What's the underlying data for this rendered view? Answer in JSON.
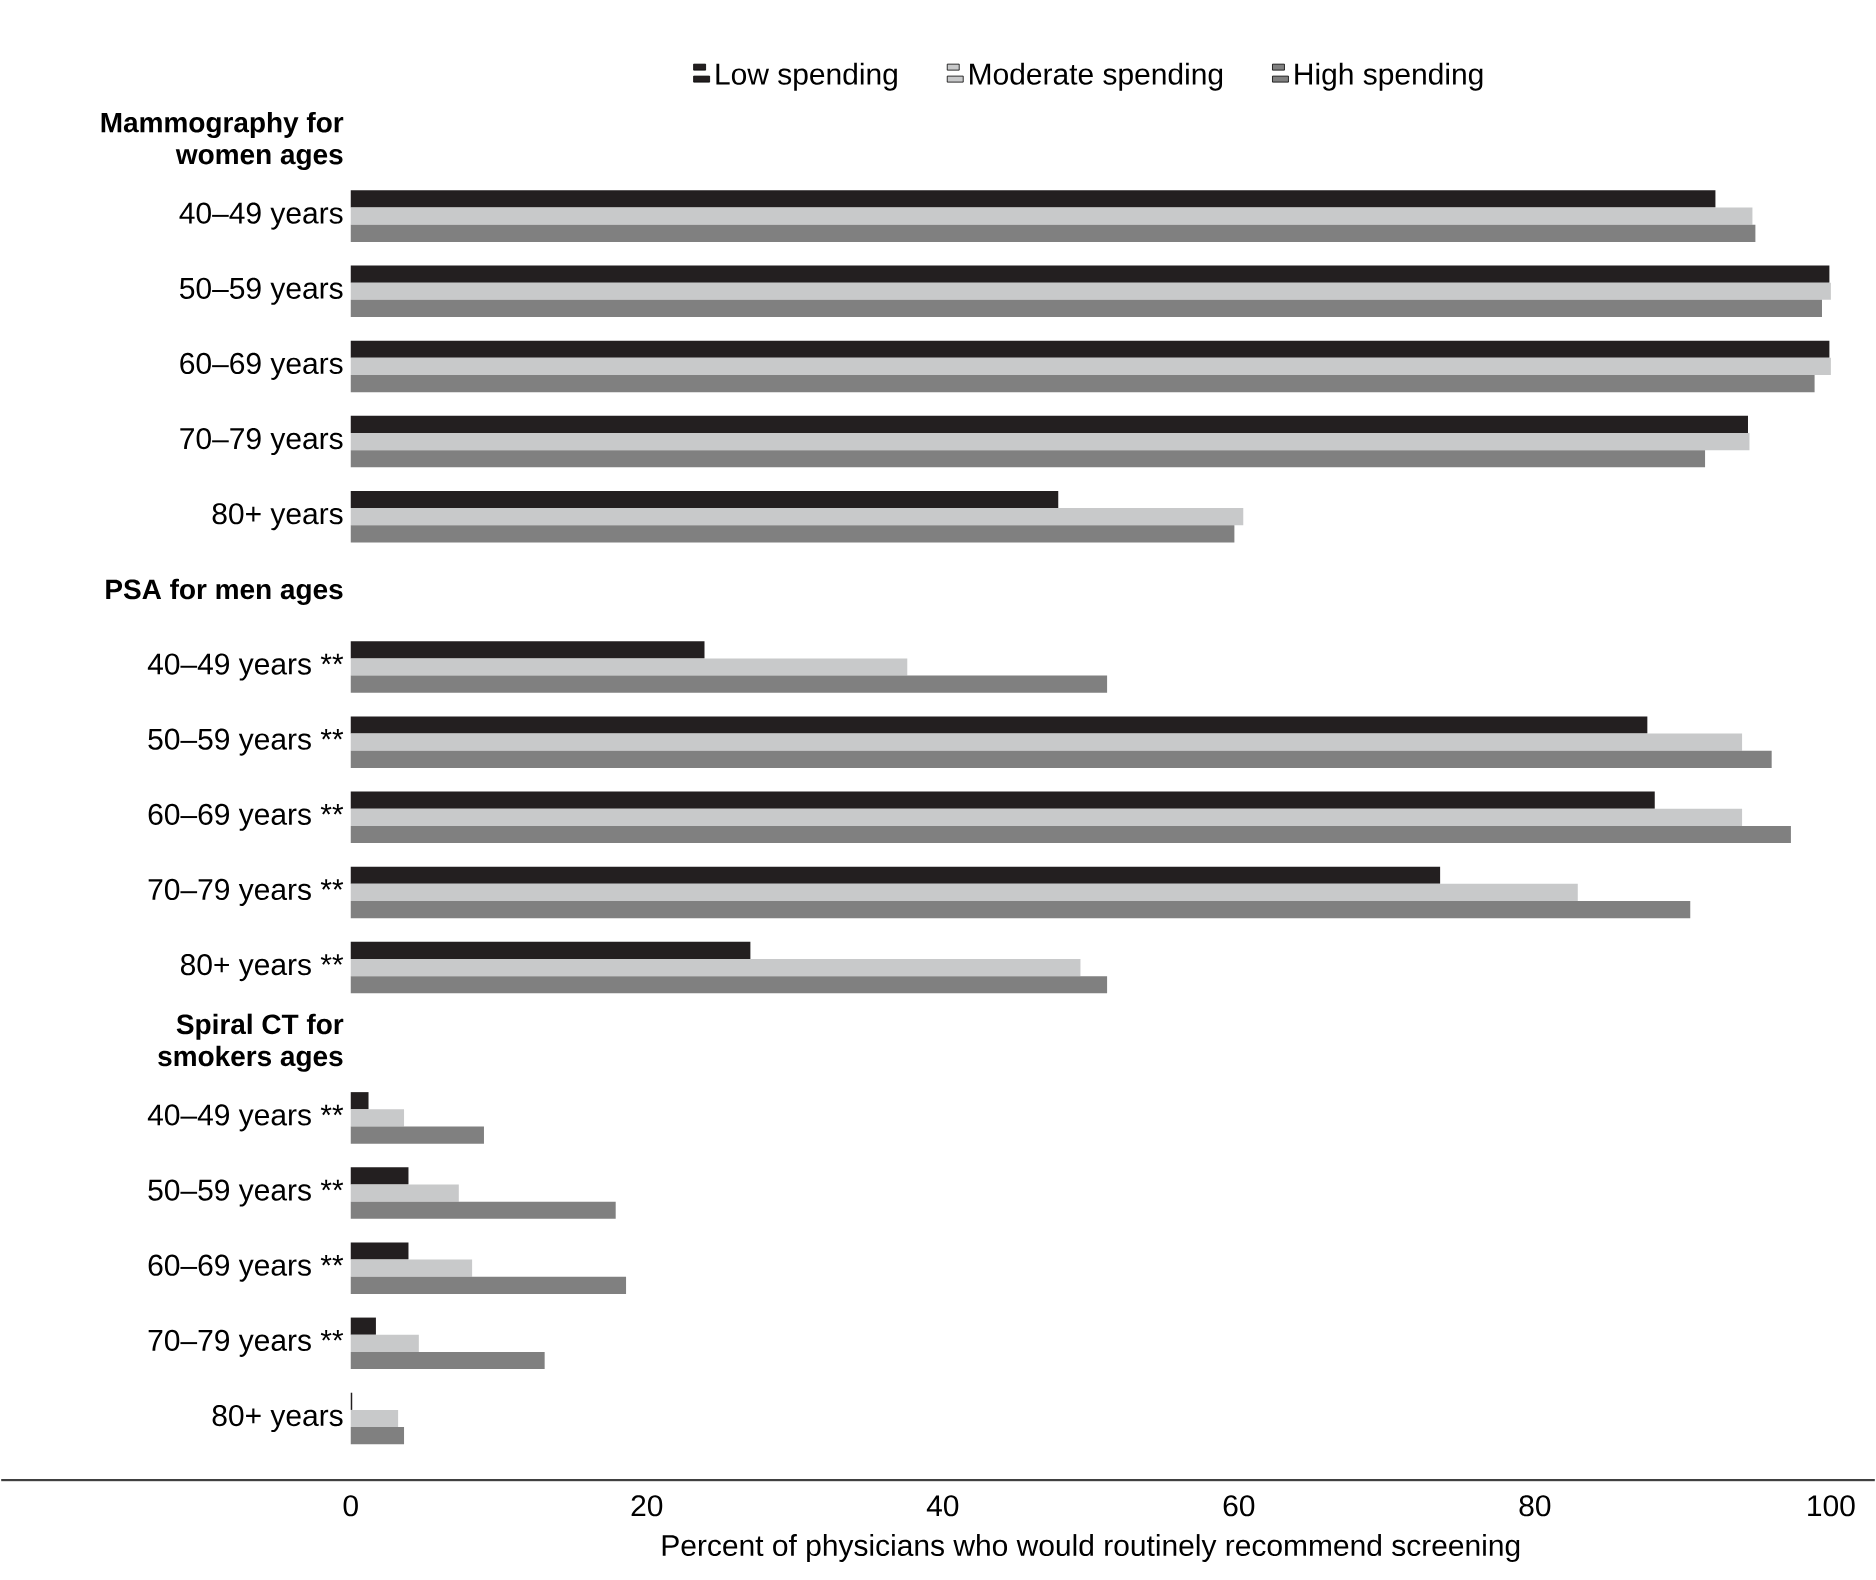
{
  "chart_data": {
    "type": "bar",
    "orientation": "horizontal",
    "xlabel": "Percent of physicians who would routinely recommend screening",
    "categories": [
      "Mammography for women ages",
      "40–49 years",
      "50–59 years",
      "60–69 years",
      "70–79 years",
      "80+ years",
      "PSA for men ages",
      "40–49 years **",
      "50–59 years **",
      "60–69 years **",
      "70–79 years **",
      "80+ years **",
      "Spiral CT for smokers ages",
      "40–49 years **",
      "50–59 years **",
      "60–69 years **",
      "70–79 years **",
      "80+ years"
    ],
    "series": [
      {
        "name": "Low spending",
        "color": "#231f20",
        "values": [
          null,
          92.2,
          99.9,
          99.9,
          94.4,
          47.8,
          null,
          23.9,
          87.6,
          88.1,
          73.6,
          27.0,
          null,
          1.2,
          3.9,
          3.9,
          1.7,
          0.1
        ]
      },
      {
        "name": "Moderate spending",
        "color": "#c8c9ca",
        "values": [
          null,
          94.7,
          100,
          100,
          94.5,
          60.3,
          null,
          37.6,
          94.0,
          94.0,
          82.9,
          49.3,
          null,
          3.6,
          7.3,
          8.2,
          4.6,
          3.2
        ]
      },
      {
        "name": "High spending",
        "color": "#808080",
        "values": [
          null,
          94.9,
          99.4,
          98.9,
          91.5,
          59.7,
          null,
          51.1,
          96.0,
          97.3,
          90.5,
          51.1,
          null,
          9.0,
          17.9,
          18.6,
          13.1,
          3.6
        ]
      }
    ],
    "xlim": [
      0,
      100
    ],
    "xticks": [
      0,
      20,
      40,
      60,
      80,
      100
    ],
    "legend": "top",
    "grid": false
  }
}
